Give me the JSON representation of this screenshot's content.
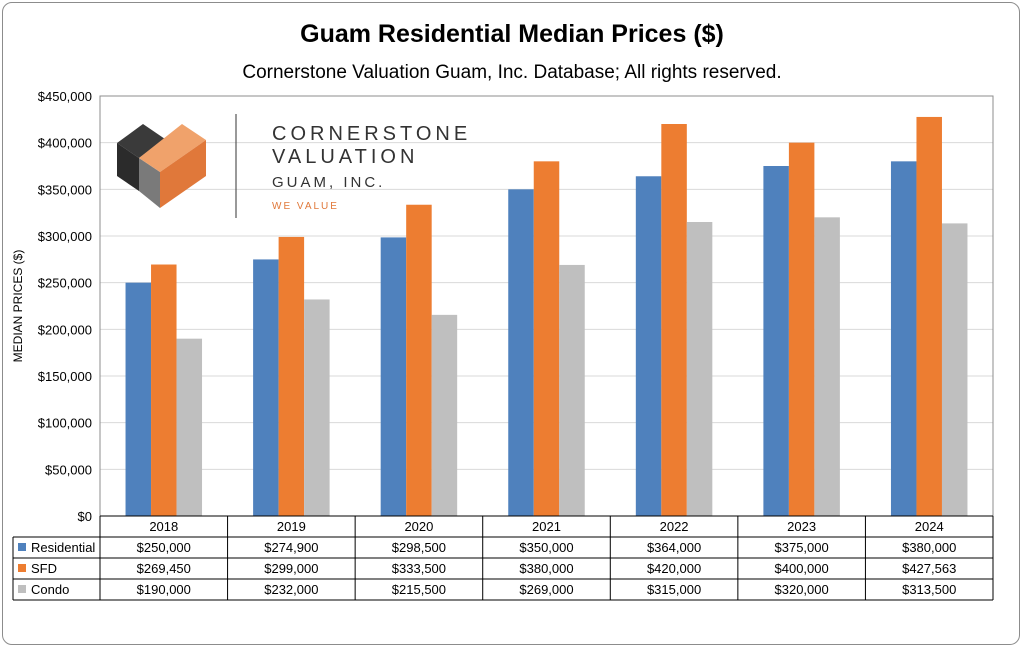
{
  "chart_data": {
    "type": "bar",
    "title": "Guam Residential Median Prices ($)",
    "subtitle": "Cornerstone Valuation Guam, Inc. Database; All rights reserved.",
    "ylabel": "MEDIAN PRICES ($)",
    "ylim": [
      0,
      450000
    ],
    "yticks": [
      "$0",
      "$50,000",
      "$100,000",
      "$150,000",
      "$200,000",
      "$250,000",
      "$300,000",
      "$350,000",
      "$400,000",
      "$450,000"
    ],
    "categories": [
      "2018",
      "2019",
      "2020",
      "2021",
      "2022",
      "2023",
      "2024"
    ],
    "series": [
      {
        "name": "Residential",
        "color": "#4f81bd",
        "values": [
          250000,
          274900,
          298500,
          350000,
          364000,
          375000,
          380000
        ],
        "labels": [
          "$250,000",
          "$274,900",
          "$298,500",
          "$350,000",
          "$364,000",
          "$375,000",
          "$380,000"
        ]
      },
      {
        "name": "SFD",
        "color": "#ed7d31",
        "values": [
          269450,
          299000,
          333500,
          380000,
          420000,
          400000,
          427563
        ],
        "labels": [
          "$269,450",
          "$299,000",
          "$333,500",
          "$380,000",
          "$420,000",
          "$400,000",
          "$427,563"
        ]
      },
      {
        "name": "Condo",
        "color": "#bfbfbf",
        "values": [
          190000,
          232000,
          215500,
          269000,
          315000,
          320000,
          313500
        ],
        "labels": [
          "$190,000",
          "$232,000",
          "$215,500",
          "$269,000",
          "$315,000",
          "$320,000",
          "$313,500"
        ]
      }
    ],
    "grid": true,
    "legend": "data-table"
  },
  "logo": {
    "line1": "CORNERSTONE",
    "line2": "VALUATION",
    "line3": "GUAM, INC.",
    "tagline": "WE VALUE",
    "colors": {
      "dark": "#3a3a3a",
      "gray": "#7a7a7a",
      "orange": "#e0783a",
      "light_orange": "#f0a26b"
    }
  }
}
